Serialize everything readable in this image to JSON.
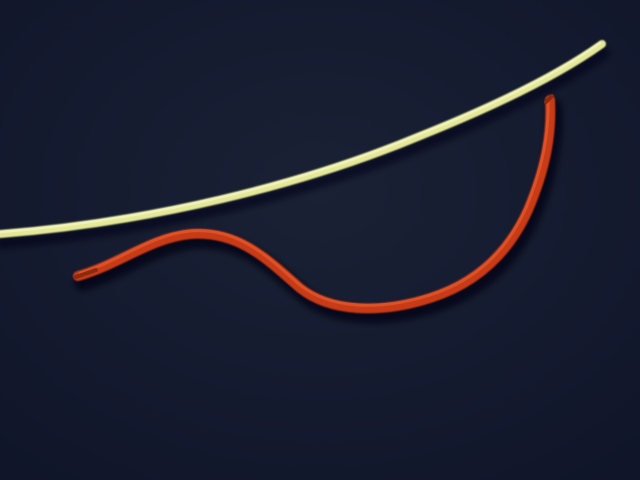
{
  "scene": {
    "background_color": "#141a2b",
    "objects": [
      {
        "id": "yellow-wire",
        "color": "#e4e897",
        "highlight_color": "#f2f4c2",
        "shadow_color": "#8a8e55"
      },
      {
        "id": "red-wire",
        "color": "#c93a18",
        "highlight_color": "#e35a2e",
        "shadow_color": "#6e1f0c"
      }
    ]
  }
}
